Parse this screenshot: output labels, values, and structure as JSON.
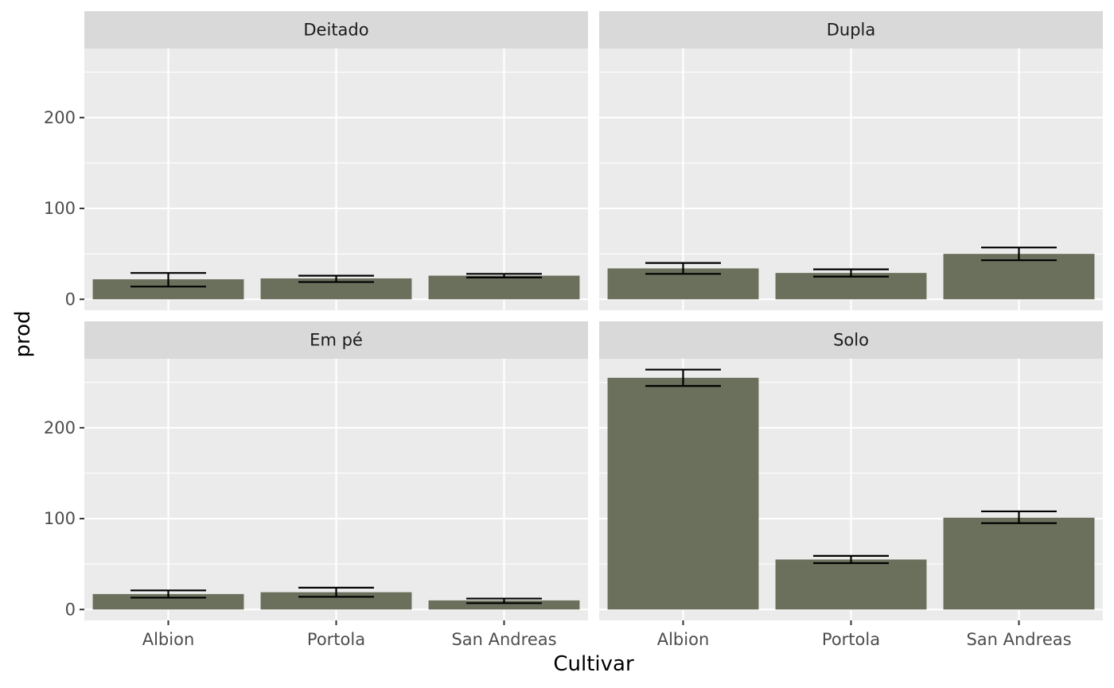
{
  "chart_data": {
    "type": "bar",
    "facets": [
      {
        "name": "Deitado",
        "categories": [
          "Albion",
          "Portola",
          "San Andreas"
        ],
        "values": [
          22,
          23,
          26
        ],
        "error_low": [
          14,
          19,
          24
        ],
        "error_high": [
          29,
          26,
          28
        ]
      },
      {
        "name": "Dupla",
        "categories": [
          "Albion",
          "Portola",
          "San Andreas"
        ],
        "values": [
          34,
          29,
          50
        ],
        "error_low": [
          28,
          25,
          43
        ],
        "error_high": [
          40,
          33,
          57
        ]
      },
      {
        "name": "Em pé",
        "categories": [
          "Albion",
          "Portola",
          "San Andreas"
        ],
        "values": [
          17,
          19,
          10
        ],
        "error_low": [
          13,
          14,
          7
        ],
        "error_high": [
          21,
          24,
          12
        ]
      },
      {
        "name": "Solo",
        "categories": [
          "Albion",
          "Portola",
          "San Andreas"
        ],
        "values": [
          255,
          55,
          101
        ],
        "error_low": [
          246,
          51,
          95
        ],
        "error_high": [
          264,
          59,
          108
        ]
      }
    ],
    "xlabel": "Cultivar",
    "ylabel": "prod",
    "y_ticks": [
      0,
      100,
      200
    ],
    "ylim": [
      -12,
      276
    ],
    "grid": true,
    "colors": {
      "bar": "#6b705c",
      "panel": "#ebebeb",
      "strip": "#d9d9d9",
      "grid": "#ffffff",
      "error": "#000000"
    }
  }
}
